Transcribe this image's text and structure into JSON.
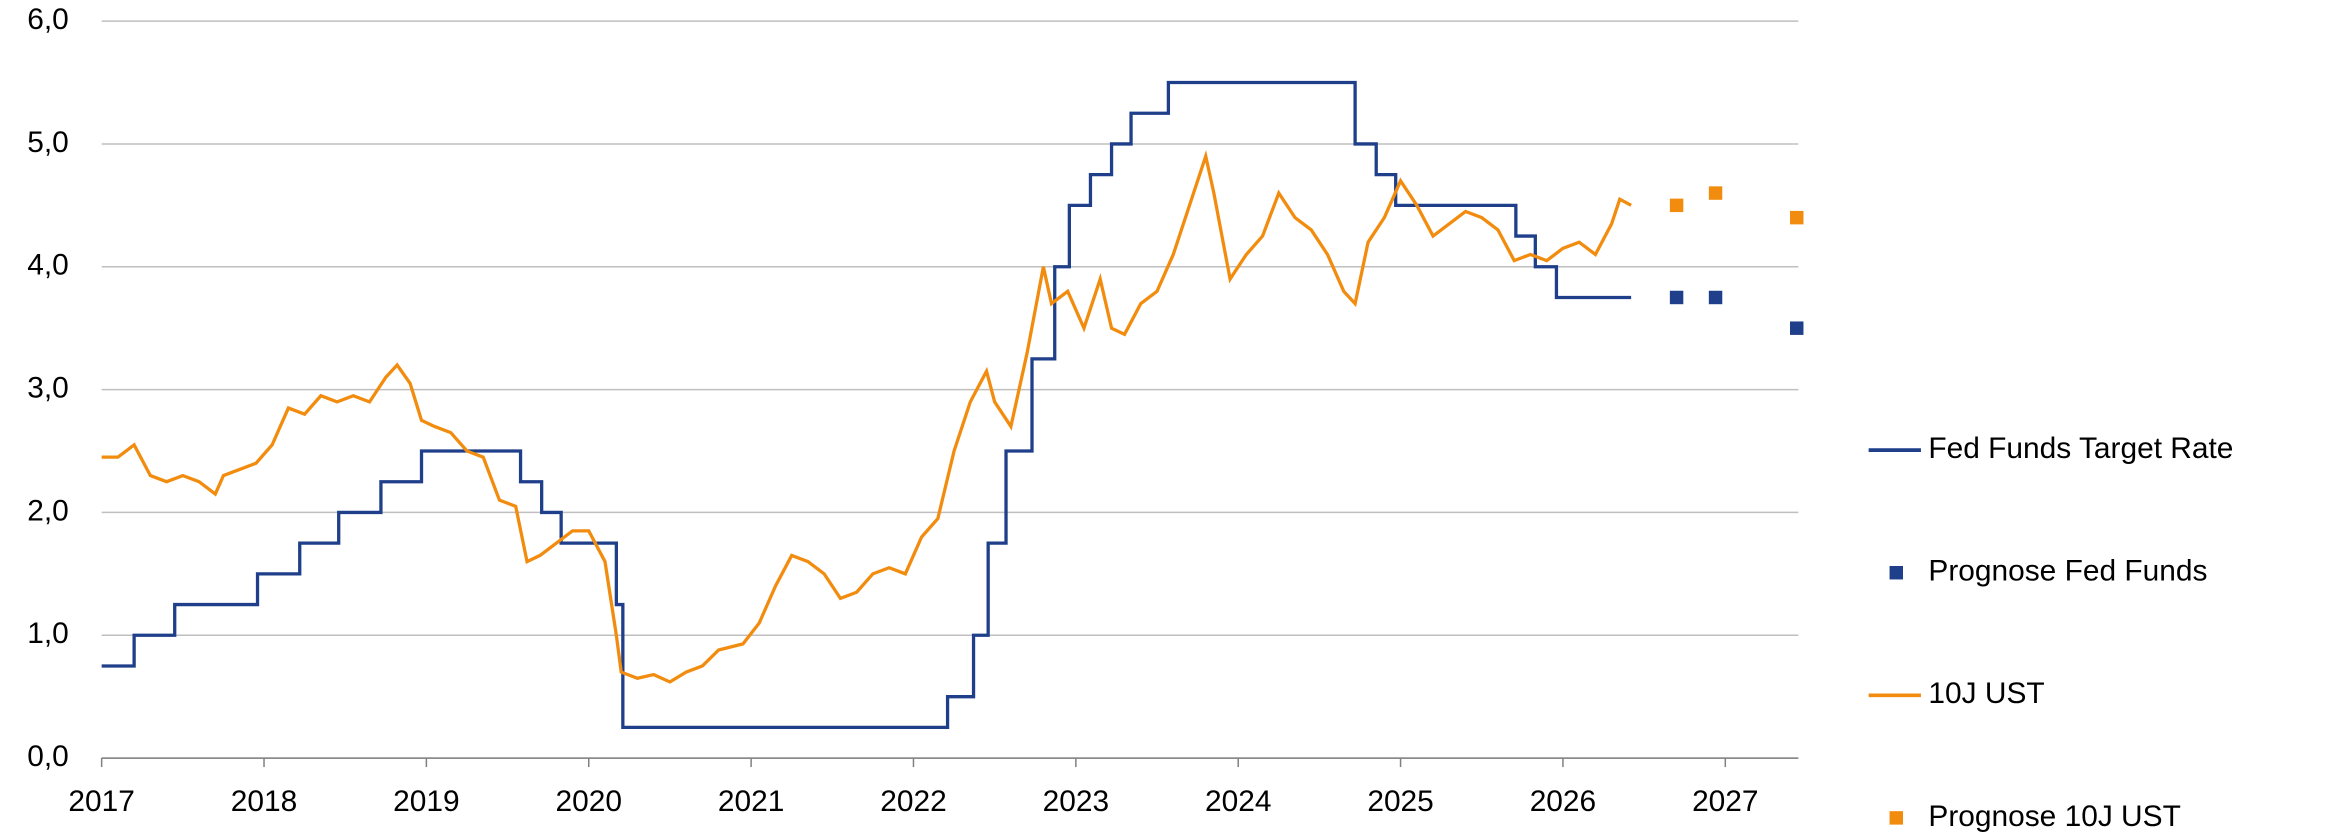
{
  "chart_data": {
    "type": "line",
    "xlim": [
      2017,
      2027.45
    ],
    "xticks": [
      2017,
      2018,
      2019,
      2020,
      2021,
      2022,
      2023,
      2024,
      2025,
      2026,
      2027
    ],
    "ylim": [
      0,
      6
    ],
    "yticks": [
      {
        "value": 0,
        "label": "0,0"
      },
      {
        "value": 1,
        "label": "1,0"
      },
      {
        "value": 2,
        "label": "2,0"
      },
      {
        "value": 3,
        "label": "3,0"
      },
      {
        "value": 4,
        "label": "4,0"
      },
      {
        "value": 5,
        "label": "5,0"
      },
      {
        "value": 6,
        "label": "6,0"
      }
    ],
    "grid": true,
    "legend": "right",
    "series": [
      {
        "name": "Fed Funds Target Rate",
        "color": "#1f3f8a",
        "style": "step",
        "x": [
          2017.0,
          2017.2,
          2017.45,
          2017.96,
          2018.22,
          2018.46,
          2018.72,
          2018.97,
          2019.58,
          2019.71,
          2019.83,
          2020.17,
          2020.21,
          2022.21,
          2022.37,
          2022.46,
          2022.57,
          2022.73,
          2022.87,
          2022.96,
          2023.09,
          2023.22,
          2023.34,
          2023.57,
          2024.72,
          2024.85,
          2024.97,
          2025.71,
          2025.83,
          2025.96,
          2026.42
        ],
        "values": [
          0.75,
          1.0,
          1.25,
          1.5,
          1.75,
          2.0,
          2.25,
          2.5,
          2.25,
          2.0,
          1.75,
          1.25,
          0.25,
          0.5,
          1.0,
          1.75,
          2.5,
          3.25,
          4.0,
          4.5,
          4.75,
          5.0,
          5.25,
          5.5,
          5.0,
          4.75,
          4.5,
          4.25,
          4.0,
          3.75,
          3.75
        ]
      },
      {
        "name": "Prognose Fed Funds",
        "color": "#1f3f8a",
        "style": "marker",
        "x": [
          2026.7,
          2026.94,
          2027.44
        ],
        "values": [
          3.75,
          3.75,
          3.5
        ]
      },
      {
        "name": "10J UST",
        "color": "#f28c0f",
        "style": "line",
        "x": [
          2017.0,
          2017.1,
          2017.2,
          2017.3,
          2017.4,
          2017.5,
          2017.6,
          2017.7,
          2017.75,
          2017.85,
          2017.95,
          2018.05,
          2018.15,
          2018.25,
          2018.35,
          2018.45,
          2018.55,
          2018.65,
          2018.75,
          2018.82,
          2018.9,
          2018.97,
          2019.05,
          2019.15,
          2019.25,
          2019.35,
          2019.45,
          2019.55,
          2019.62,
          2019.7,
          2019.8,
          2019.9,
          2020.0,
          2020.1,
          2020.17,
          2020.2,
          2020.3,
          2020.4,
          2020.5,
          2020.6,
          2020.7,
          2020.8,
          2020.95,
          2021.05,
          2021.15,
          2021.25,
          2021.35,
          2021.45,
          2021.55,
          2021.65,
          2021.75,
          2021.85,
          2021.95,
          2022.05,
          2022.15,
          2022.25,
          2022.35,
          2022.45,
          2022.5,
          2022.6,
          2022.7,
          2022.8,
          2022.85,
          2022.95,
          2023.05,
          2023.15,
          2023.22,
          2023.3,
          2023.4,
          2023.5,
          2023.6,
          2023.7,
          2023.8,
          2023.85,
          2023.95,
          2024.05,
          2024.15,
          2024.25,
          2024.35,
          2024.45,
          2024.55,
          2024.65,
          2024.72,
          2024.8,
          2024.9,
          2025.0,
          2025.1,
          2025.2,
          2025.3,
          2025.4,
          2025.5,
          2025.6,
          2025.7,
          2025.8,
          2025.9,
          2026.0,
          2026.1,
          2026.2,
          2026.3,
          2026.35,
          2026.42
        ],
        "values": [
          2.45,
          2.45,
          2.55,
          2.3,
          2.25,
          2.3,
          2.25,
          2.15,
          2.3,
          2.35,
          2.4,
          2.55,
          2.85,
          2.8,
          2.95,
          2.9,
          2.95,
          2.9,
          3.1,
          3.2,
          3.05,
          2.75,
          2.7,
          2.65,
          2.5,
          2.45,
          2.1,
          2.05,
          1.6,
          1.65,
          1.75,
          1.85,
          1.85,
          1.6,
          1.0,
          0.7,
          0.65,
          0.68,
          0.62,
          0.7,
          0.75,
          0.88,
          0.93,
          1.1,
          1.4,
          1.65,
          1.6,
          1.5,
          1.3,
          1.35,
          1.5,
          1.55,
          1.5,
          1.8,
          1.95,
          2.5,
          2.9,
          3.15,
          2.9,
          2.7,
          3.3,
          4.0,
          3.7,
          3.8,
          3.5,
          3.9,
          3.5,
          3.45,
          3.7,
          3.8,
          4.1,
          4.5,
          4.9,
          4.6,
          3.9,
          4.1,
          4.25,
          4.6,
          4.4,
          4.3,
          4.1,
          3.8,
          3.7,
          4.2,
          4.4,
          4.7,
          4.5,
          4.25,
          4.35,
          4.45,
          4.4,
          4.3,
          4.05,
          4.1,
          4.05,
          4.15,
          4.2,
          4.1,
          4.35,
          4.55,
          4.5
        ]
      },
      {
        "name": "Prognose 10J UST",
        "color": "#f28c0f",
        "style": "marker",
        "x": [
          2026.7,
          2026.94,
          2027.44
        ],
        "values": [
          4.5,
          4.6,
          4.4
        ]
      }
    ]
  }
}
